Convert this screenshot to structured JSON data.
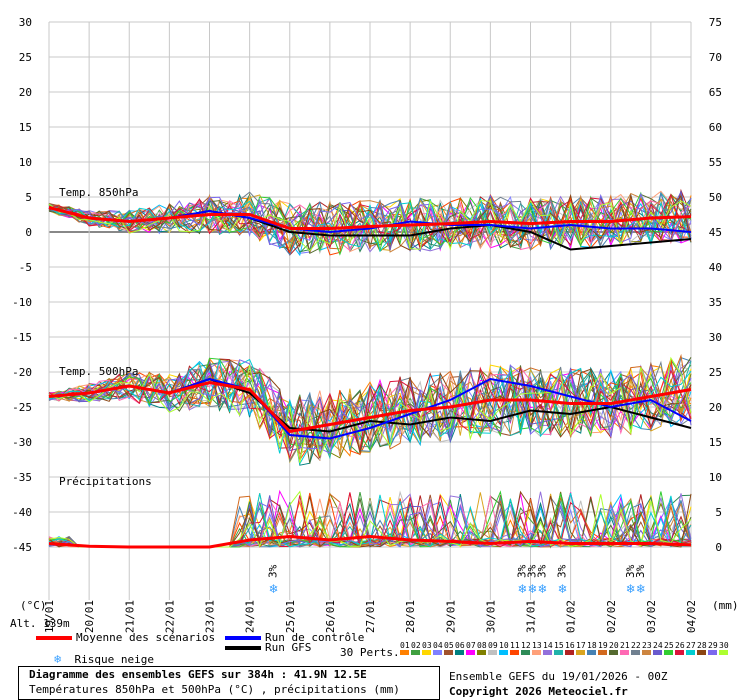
{
  "chart_data": {
    "type": "line",
    "left_axis": {
      "ticks": [
        "30",
        "25",
        "20",
        "15",
        "10",
        "5",
        "0",
        "-5",
        "-10",
        "-15",
        "-20",
        "-25",
        "-30",
        "-35",
        "-40",
        "-45"
      ],
      "values": [
        30,
        25,
        20,
        15,
        10,
        5,
        0,
        -5,
        -10,
        -15,
        -20,
        -25,
        -30,
        -35,
        -40,
        -45
      ],
      "unit_label": "(°C)"
    },
    "right_axis": {
      "ticks": [
        "75",
        "70",
        "65",
        "60",
        "55",
        "50",
        "45",
        "40",
        "35",
        "30",
        "25",
        "20",
        "15",
        "10",
        "5",
        "0"
      ],
      "values": [
        75,
        70,
        65,
        60,
        55,
        50,
        45,
        40,
        35,
        30,
        25,
        20,
        15,
        10,
        5,
        0
      ],
      "unit_label": "(mm)"
    },
    "x_dates": [
      "19/01",
      "20/01",
      "21/01",
      "22/01",
      "23/01",
      "24/01",
      "25/01",
      "26/01",
      "27/01",
      "28/01",
      "29/01",
      "30/01",
      "31/01",
      "01/02",
      "02/02",
      "03/02",
      "04/02"
    ],
    "labels": {
      "t850": "Temp. 850hPa",
      "t500": "Temp. 500hPa",
      "precip": "Précipitations",
      "alt": "Alt. 139m"
    },
    "series": [
      {
        "name": "Moyenne des scénarios",
        "color": "#ff0000"
      },
      {
        "name": "Run de contrôle",
        "color": "#0000ff"
      },
      {
        "name": "Run GFS",
        "color": "#000000"
      }
    ],
    "mean_t850_x": [
      0,
      1,
      2,
      3,
      4,
      5,
      6,
      7,
      8,
      9,
      10,
      11,
      12,
      13,
      14,
      15,
      16
    ],
    "mean_t850_y": [
      3.5,
      2.0,
      1.5,
      2.0,
      2.5,
      2.5,
      0.5,
      0.5,
      0.8,
      1.0,
      1.2,
      1.5,
      1.2,
      1.5,
      1.5,
      2.0,
      2.2
    ],
    "control_t850_y": [
      3.5,
      2.0,
      1.5,
      2.0,
      3.0,
      2.0,
      0.5,
      0.0,
      0.5,
      1.5,
      1.0,
      1.0,
      0.5,
      1.0,
      0.5,
      0.5,
      0.0
    ],
    "gfs_t850_y": [
      3.5,
      2.0,
      1.5,
      2.0,
      3.0,
      2.0,
      0.0,
      -0.5,
      -0.5,
      -0.5,
      0.5,
      1.0,
      0.0,
      -2.5,
      -2.0,
      -1.5,
      -1.0
    ],
    "mean_t500_y": [
      -23.5,
      -23.0,
      -22.0,
      -23.0,
      -21.5,
      -22.5,
      -28.5,
      -27.5,
      -26.5,
      -25.5,
      -25.0,
      -24.0,
      -24.0,
      -24.5,
      -24.5,
      -23.5,
      -22.5
    ],
    "control_t500_y": [
      -23.5,
      -23.0,
      -22.0,
      -23.0,
      -21.0,
      -22.5,
      -29.0,
      -29.5,
      -28.0,
      -26.0,
      -24.0,
      -21.0,
      -22.0,
      -23.5,
      -25.0,
      -24.0,
      -27.0
    ],
    "gfs_t500_y": [
      -23.5,
      -23.0,
      -22.0,
      -23.0,
      -21.0,
      -23.0,
      -28.0,
      -28.5,
      -27.0,
      -27.5,
      -26.5,
      -27.0,
      -25.5,
      -26.0,
      -25.0,
      -26.5,
      -28.0
    ],
    "mean_precip_mm": [
      0.5,
      0.1,
      0.0,
      0.0,
      0.0,
      1.0,
      1.5,
      1.0,
      1.5,
      1.0,
      0.8,
      0.5,
      0.8,
      0.5,
      0.5,
      0.5,
      0.3
    ],
    "snow_markers": {
      "label": "3%",
      "x": [
        5.6,
        11.8,
        12.05,
        12.3,
        12.8,
        14.5,
        14.75
      ]
    },
    "legend_risk": "Risque neige",
    "perts_label": "30 Perts.",
    "pert_numbers": [
      "01",
      "02",
      "03",
      "04",
      "05",
      "06",
      "07",
      "08",
      "09",
      "10",
      "11",
      "12",
      "13",
      "14",
      "15",
      "16",
      "17",
      "18",
      "19",
      "20",
      "21",
      "22",
      "23",
      "24",
      "25",
      "26",
      "27",
      "28",
      "29",
      "30"
    ],
    "pert_colors": [
      "#ff8000",
      "#40a040",
      "#ffd700",
      "#8080ff",
      "#a0522d",
      "#008080",
      "#ff00ff",
      "#808000",
      "#c0c0c0",
      "#00bfff",
      "#ff4500",
      "#2e8b57",
      "#ffa07a",
      "#9370db",
      "#20b2aa",
      "#b22222",
      "#daa520",
      "#4682b4",
      "#d2691e",
      "#556b2f",
      "#ff69b4",
      "#708090",
      "#cd853f",
      "#6a5acd",
      "#32cd32",
      "#dc143c",
      "#00ced1",
      "#8b4513",
      "#7b68ee",
      "#adff2f"
    ],
    "footer_title": "Diagramme des ensembles GEFS sur 384h : 41.9N 12.5E",
    "footer_subtitle": "Températures 850hPa et 500hPa (°C) , précipitations (mm)",
    "ensemble_info": "Ensemble GEFS du 19/01/2026 - 00Z",
    "copyright": "Copyright 2026 Meteociel.fr"
  }
}
